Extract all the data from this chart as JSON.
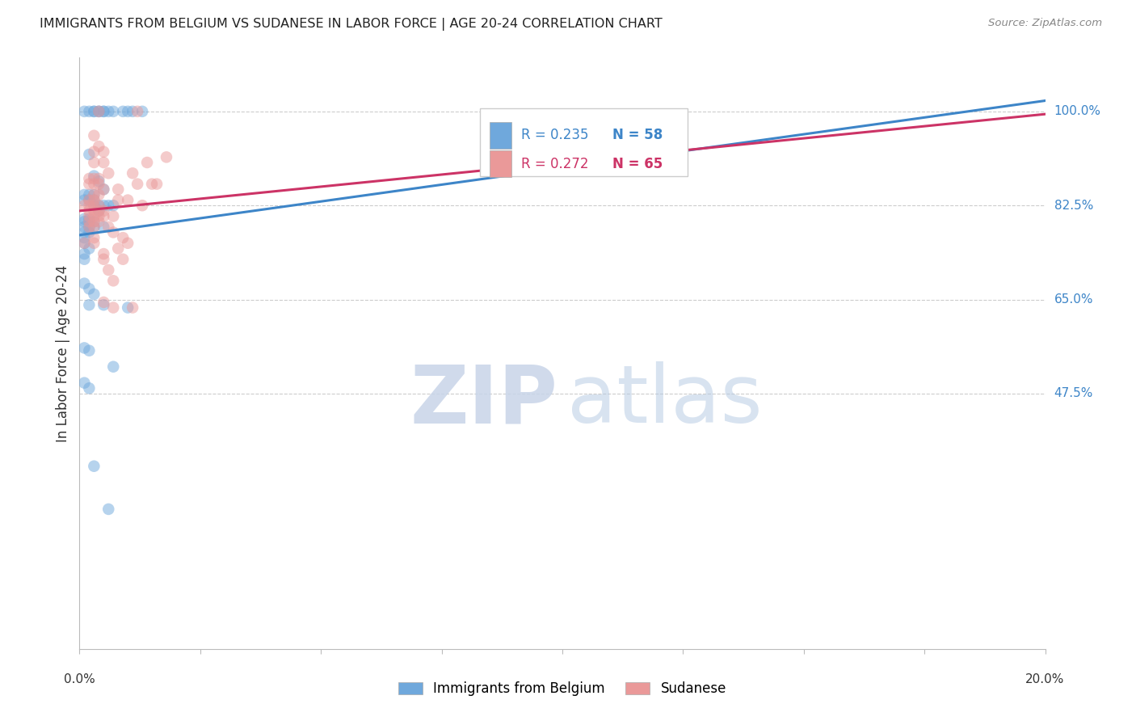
{
  "title": "IMMIGRANTS FROM BELGIUM VS SUDANESE IN LABOR FORCE | AGE 20-24 CORRELATION CHART",
  "source": "Source: ZipAtlas.com",
  "ylabel": "In Labor Force | Age 20-24",
  "xlim": [
    0.0,
    0.2
  ],
  "ylim": [
    0.0,
    1.1
  ],
  "blue_color": "#6fa8dc",
  "pink_color": "#ea9999",
  "blue_line_color": "#3d85c8",
  "pink_line_color": "#cc3366",
  "blue_scatter": [
    [
      0.001,
      1.0
    ],
    [
      0.002,
      1.0
    ],
    [
      0.003,
      1.0
    ],
    [
      0.003,
      1.0
    ],
    [
      0.004,
      1.0
    ],
    [
      0.004,
      1.0
    ],
    [
      0.005,
      1.0
    ],
    [
      0.005,
      1.0
    ],
    [
      0.006,
      1.0
    ],
    [
      0.007,
      1.0
    ],
    [
      0.009,
      1.0
    ],
    [
      0.01,
      1.0
    ],
    [
      0.011,
      1.0
    ],
    [
      0.013,
      1.0
    ],
    [
      0.002,
      0.92
    ],
    [
      0.003,
      0.88
    ],
    [
      0.004,
      0.87
    ],
    [
      0.005,
      0.855
    ],
    [
      0.001,
      0.845
    ],
    [
      0.002,
      0.845
    ],
    [
      0.003,
      0.845
    ],
    [
      0.003,
      0.835
    ],
    [
      0.001,
      0.835
    ],
    [
      0.002,
      0.835
    ],
    [
      0.003,
      0.825
    ],
    [
      0.004,
      0.825
    ],
    [
      0.005,
      0.825
    ],
    [
      0.006,
      0.825
    ],
    [
      0.007,
      0.825
    ],
    [
      0.004,
      0.815
    ],
    [
      0.001,
      0.8
    ],
    [
      0.002,
      0.8
    ],
    [
      0.001,
      0.795
    ],
    [
      0.002,
      0.795
    ],
    [
      0.003,
      0.795
    ],
    [
      0.001,
      0.785
    ],
    [
      0.002,
      0.785
    ],
    [
      0.003,
      0.785
    ],
    [
      0.001,
      0.775
    ],
    [
      0.002,
      0.775
    ],
    [
      0.001,
      0.765
    ],
    [
      0.001,
      0.755
    ],
    [
      0.002,
      0.745
    ],
    [
      0.001,
      0.735
    ],
    [
      0.001,
      0.725
    ],
    [
      0.005,
      0.785
    ],
    [
      0.001,
      0.68
    ],
    [
      0.002,
      0.67
    ],
    [
      0.003,
      0.66
    ],
    [
      0.002,
      0.64
    ],
    [
      0.005,
      0.64
    ],
    [
      0.01,
      0.635
    ],
    [
      0.001,
      0.56
    ],
    [
      0.002,
      0.555
    ],
    [
      0.007,
      0.525
    ],
    [
      0.001,
      0.495
    ],
    [
      0.002,
      0.485
    ],
    [
      0.003,
      0.34
    ],
    [
      0.006,
      0.26
    ]
  ],
  "pink_scatter": [
    [
      0.004,
      1.0
    ],
    [
      0.012,
      1.0
    ],
    [
      0.003,
      0.955
    ],
    [
      0.004,
      0.935
    ],
    [
      0.003,
      0.925
    ],
    [
      0.005,
      0.925
    ],
    [
      0.003,
      0.905
    ],
    [
      0.005,
      0.905
    ],
    [
      0.006,
      0.885
    ],
    [
      0.002,
      0.875
    ],
    [
      0.003,
      0.875
    ],
    [
      0.004,
      0.875
    ],
    [
      0.002,
      0.865
    ],
    [
      0.003,
      0.865
    ],
    [
      0.004,
      0.865
    ],
    [
      0.005,
      0.855
    ],
    [
      0.003,
      0.845
    ],
    [
      0.004,
      0.845
    ],
    [
      0.002,
      0.835
    ],
    [
      0.003,
      0.835
    ],
    [
      0.001,
      0.825
    ],
    [
      0.002,
      0.825
    ],
    [
      0.003,
      0.825
    ],
    [
      0.004,
      0.825
    ],
    [
      0.002,
      0.815
    ],
    [
      0.003,
      0.815
    ],
    [
      0.004,
      0.815
    ],
    [
      0.005,
      0.815
    ],
    [
      0.002,
      0.805
    ],
    [
      0.003,
      0.805
    ],
    [
      0.004,
      0.805
    ],
    [
      0.005,
      0.805
    ],
    [
      0.002,
      0.795
    ],
    [
      0.003,
      0.795
    ],
    [
      0.004,
      0.795
    ],
    [
      0.002,
      0.785
    ],
    [
      0.003,
      0.785
    ],
    [
      0.006,
      0.785
    ],
    [
      0.007,
      0.775
    ],
    [
      0.003,
      0.765
    ],
    [
      0.001,
      0.755
    ],
    [
      0.003,
      0.755
    ],
    [
      0.005,
      0.735
    ],
    [
      0.008,
      0.855
    ],
    [
      0.005,
      0.725
    ],
    [
      0.006,
      0.705
    ],
    [
      0.007,
      0.805
    ],
    [
      0.01,
      0.835
    ],
    [
      0.008,
      0.745
    ],
    [
      0.009,
      0.765
    ],
    [
      0.007,
      0.685
    ],
    [
      0.005,
      0.645
    ],
    [
      0.008,
      0.835
    ],
    [
      0.009,
      0.725
    ],
    [
      0.011,
      0.885
    ],
    [
      0.013,
      0.825
    ],
    [
      0.012,
      0.865
    ],
    [
      0.015,
      0.865
    ],
    [
      0.014,
      0.905
    ],
    [
      0.016,
      0.865
    ],
    [
      0.018,
      0.915
    ],
    [
      0.01,
      0.755
    ],
    [
      0.007,
      0.635
    ],
    [
      0.011,
      0.635
    ]
  ],
  "blue_trendline": {
    "x": [
      0.0,
      0.2
    ],
    "y": [
      0.77,
      1.02
    ]
  },
  "pink_trendline": {
    "x": [
      0.0,
      0.2
    ],
    "y": [
      0.815,
      0.995
    ]
  },
  "ytick_vals": [
    0.475,
    0.65,
    0.825,
    1.0
  ],
  "ytick_labels": [
    "47.5%",
    "65.0%",
    "82.5%",
    "100.0%"
  ],
  "legend_labels": [
    "Immigrants from Belgium",
    "Sudanese"
  ]
}
